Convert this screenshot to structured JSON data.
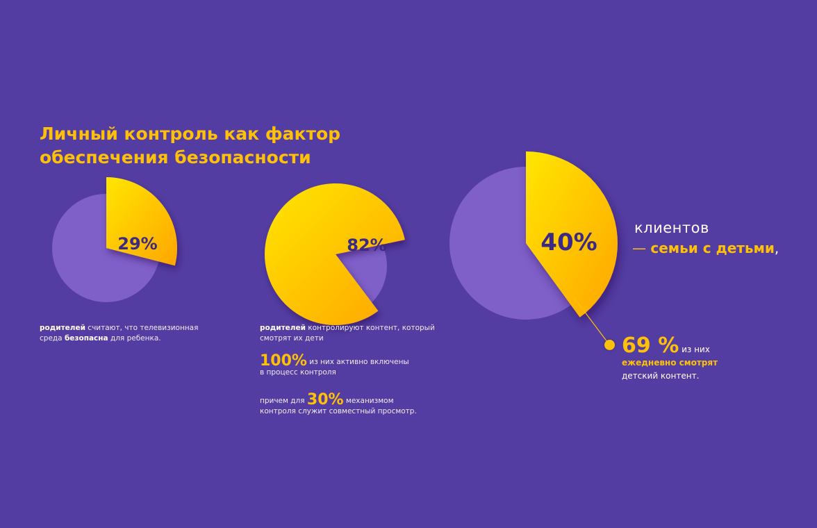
{
  "title": {
    "line1": "Личный контроль как фактор",
    "line2": "обеспечения безопасности"
  },
  "colors": {
    "background": "#543da2",
    "pie_base": "#7f5fc8",
    "accent": "#ffc107",
    "accent_light": "#ffe600",
    "accent_dark": "#ffa500",
    "label_dark": "#3a2a85"
  },
  "chart_data": [
    {
      "type": "pie",
      "title": "29%",
      "values": [
        29,
        71
      ],
      "labels": [
        "родителей считают, что телевизионная среда безопасна для ребенка",
        ""
      ],
      "highlight_percent": 29
    },
    {
      "type": "pie",
      "title": "82%",
      "values": [
        82,
        18
      ],
      "labels": [
        "родителей контролируют контент, который смотрят их дети",
        ""
      ],
      "highlight_percent": 82
    },
    {
      "type": "pie",
      "title": "40%",
      "values": [
        40,
        60
      ],
      "labels": [
        "клиентов — семьи с детьми",
        ""
      ],
      "highlight_percent": 40
    }
  ],
  "pies": [
    {
      "label": "29%",
      "percent": 29
    },
    {
      "label": "82%",
      "percent": 82
    },
    {
      "label": "40%",
      "percent": 40
    }
  ],
  "captions": {
    "c1": {
      "bold1": "родителей",
      "text1": " считают, что телевизионная",
      "text2": "среда ",
      "bold2": "безопасна",
      "text3": " для ребенка."
    },
    "c2": {
      "bold": "родителей",
      "text1": " контролируют контент, который",
      "text2": "смотрят их дети"
    },
    "c3": {
      "num": "100%",
      "text1": " из них активно включены",
      "text2": "в процесс контроля"
    },
    "c4": {
      "pre": "причем для ",
      "num": "30%",
      "text1": " механизмом",
      "text2": "контроля служит совместный просмотр."
    }
  },
  "right": {
    "clients": "клиентов",
    "dash": "— ",
    "family": "семьи с детьми",
    "comma": ",",
    "stat": "69 %",
    "stat_suffix": " из них",
    "daily": "ежедневно смотрят",
    "kid_content": "детский контент."
  }
}
